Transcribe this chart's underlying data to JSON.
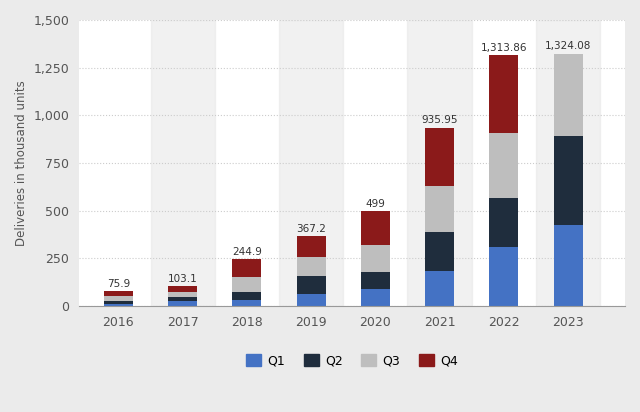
{
  "years": [
    "2016",
    "2017",
    "2018",
    "2019",
    "2020",
    "2021",
    "2022",
    "2023"
  ],
  "Q1": [
    12.4,
    25.4,
    29.98,
    63.0,
    88.4,
    184.8,
    310.05,
    422.88
  ],
  "Q2": [
    14.37,
    22.0,
    40.74,
    95.2,
    90.65,
    201.25,
    254.695,
    466.14
  ],
  "Q3": [
    24.82,
    26.15,
    83.5,
    97.0,
    139.3,
    241.3,
    343.83,
    435.06
  ],
  "Q4": [
    24.31,
    29.55,
    90.68,
    112.0,
    180.57,
    308.6,
    405.278,
    0.0
  ],
  "totals": [
    "75.9",
    "103.1",
    "244.9",
    "367.2",
    "499",
    "935.95",
    "1,313.86",
    "1,324.08"
  ],
  "colors": {
    "Q1": "#4472C4",
    "Q2": "#1F2D3D",
    "Q3": "#BEBEBE",
    "Q4": "#8B1A1A"
  },
  "ylabel": "Deliveries in thousand units",
  "ylim": [
    0,
    1500
  ],
  "yticks": [
    0,
    250,
    500,
    750,
    1000,
    1250,
    1500
  ],
  "ytick_labels": [
    "0",
    "250",
    "500",
    "750",
    "1,000",
    "1,250",
    "1,500"
  ],
  "bg_color": "#EBEBEB",
  "plot_bg_color": "#FFFFFF",
  "grid_color": "#CCCCCC",
  "label_fontsize": 9
}
